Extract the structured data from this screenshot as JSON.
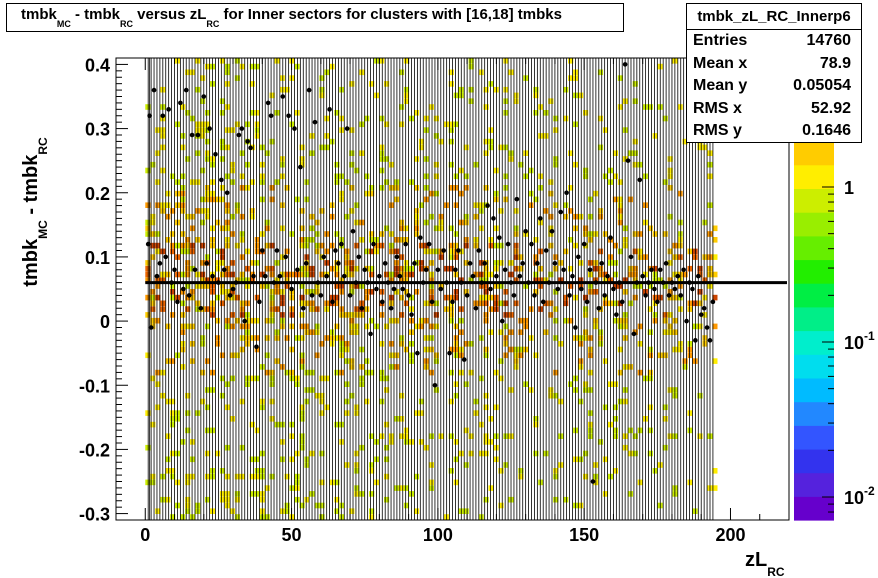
{
  "title": {
    "parts": [
      {
        "t": "tmbk",
        "sub": "MC"
      },
      {
        "t": " - tmbk",
        "sub": "RC"
      },
      {
        "t": " versus zL",
        "sub": "RC"
      },
      {
        "t": " for Inner sectors for clusters with [16,18] tmbks",
        "sub": ""
      }
    ]
  },
  "stats": {
    "name": "tmbk_zL_RC_Innerp6",
    "rows": [
      {
        "key": "Entries",
        "value": "14760"
      },
      {
        "key": "Mean x",
        "value": "78.9"
      },
      {
        "key": "Mean y",
        "value": "0.05054"
      },
      {
        "key": "RMS x",
        "value": "52.92"
      },
      {
        "key": "RMS y",
        "value": "0.1646"
      }
    ]
  },
  "chart_data": {
    "type": "heatmap",
    "title": "tmbk_MC - tmbk_RC versus zL_RC for Inner sectors for clusters with [16,18] tmbks",
    "xlabel": "zL_RC",
    "ylabel": "tmbk_MC - tmbk_RC",
    "xlim": [
      -10,
      220
    ],
    "ylim": [
      -0.31,
      0.41
    ],
    "x_ticks": [
      0,
      50,
      100,
      150,
      200
    ],
    "x_tick_labels": [
      "0",
      "50",
      "100",
      "150",
      "200"
    ],
    "y_ticks": [
      -0.3,
      -0.2,
      -0.1,
      0,
      0.1,
      0.2,
      0.3,
      0.4
    ],
    "y_tick_labels": [
      "-0.3",
      "-0.2",
      "-0.1",
      "0",
      "0.1",
      "0.2",
      "0.3",
      "0.4"
    ],
    "x_data_range": [
      0,
      195
    ],
    "mean_line_y": 0.06,
    "colorbar": {
      "scale": "log",
      "labels": [
        {
          "value": 1,
          "base": "1",
          "exp": ""
        },
        {
          "value": 0.1,
          "base": "10",
          "exp": "-1"
        },
        {
          "value": 0.01,
          "base": "10",
          "exp": "-2"
        }
      ],
      "colors": [
        "#6600cc",
        "#5522dd",
        "#3333ee",
        "#3355ff",
        "#2288ff",
        "#00bbff",
        "#00ddee",
        "#00eecc",
        "#00ee88",
        "#00ee44",
        "#22ee00",
        "#66ee00",
        "#99ee00",
        "#ccee00",
        "#ffee00",
        "#ffcc00"
      ]
    },
    "profile_points": [
      {
        "x": 1,
        "y": 0.12
      },
      {
        "x": 1.5,
        "y": 0.32
      },
      {
        "x": 2,
        "y": -0.01
      },
      {
        "x": 3,
        "y": 0.36
      },
      {
        "x": 4,
        "y": 0.07
      },
      {
        "x": 5,
        "y": 0.09
      },
      {
        "x": 6,
        "y": 0.32
      },
      {
        "x": 7,
        "y": 0.1
      },
      {
        "x": 8,
        "y": 0.33
      },
      {
        "x": 9,
        "y": 0.06
      },
      {
        "x": 10,
        "y": 0.08
      },
      {
        "x": 11,
        "y": 0.03
      },
      {
        "x": 12,
        "y": 0.34
      },
      {
        "x": 13,
        "y": 0.05
      },
      {
        "x": 14,
        "y": 0.36
      },
      {
        "x": 15,
        "y": 0.04
      },
      {
        "x": 16,
        "y": 0.29
      },
      {
        "x": 17,
        "y": 0.08
      },
      {
        "x": 18,
        "y": 0.29
      },
      {
        "x": 19,
        "y": 0.02
      },
      {
        "x": 20,
        "y": 0.35
      },
      {
        "x": 21,
        "y": 0.09
      },
      {
        "x": 22,
        "y": 0.3
      },
      {
        "x": 23,
        "y": 0.07
      },
      {
        "x": 24,
        "y": 0.26
      },
      {
        "x": 25,
        "y": 0.06
      },
      {
        "x": 26,
        "y": 0.22
      },
      {
        "x": 27,
        "y": 0.08
      },
      {
        "x": 28,
        "y": 0.2
      },
      {
        "x": 29,
        "y": 0.04
      },
      {
        "x": 30,
        "y": 0.05
      },
      {
        "x": 31,
        "y": 0.06
      },
      {
        "x": 32,
        "y": 0.29
      },
      {
        "x": 33,
        "y": 0.3
      },
      {
        "x": 34,
        "y": 0.0
      },
      {
        "x": 35,
        "y": 0.28
      },
      {
        "x": 36,
        "y": 0.27
      },
      {
        "x": 37,
        "y": 0.07
      },
      {
        "x": 38,
        "y": -0.04
      },
      {
        "x": 39,
        "y": 0.03
      },
      {
        "x": 40,
        "y": 0.11
      },
      {
        "x": 41,
        "y": 0.07
      },
      {
        "x": 42,
        "y": 0.34
      },
      {
        "x": 43,
        "y": 0.32
      },
      {
        "x": 44,
        "y": 0.06
      },
      {
        "x": 45,
        "y": 0.11
      },
      {
        "x": 46,
        "y": 0.07
      },
      {
        "x": 47,
        "y": 0.35
      },
      {
        "x": 48,
        "y": 0.1
      },
      {
        "x": 49,
        "y": 0.32
      },
      {
        "x": 50,
        "y": 0.05
      },
      {
        "x": 51,
        "y": 0.3
      },
      {
        "x": 52,
        "y": 0.08
      },
      {
        "x": 53,
        "y": 0.24
      },
      {
        "x": 54,
        "y": 0.02
      },
      {
        "x": 55,
        "y": 0.09
      },
      {
        "x": 56,
        "y": 0.36
      },
      {
        "x": 57,
        "y": 0.04
      },
      {
        "x": 58,
        "y": 0.31
      },
      {
        "x": 59,
        "y": 0.06
      },
      {
        "x": 60,
        "y": 0.04
      },
      {
        "x": 61,
        "y": 0.1
      },
      {
        "x": 62,
        "y": 0.07
      },
      {
        "x": 63,
        "y": 0.33
      },
      {
        "x": 64,
        "y": 0.03
      },
      {
        "x": 65,
        "y": 0.11
      },
      {
        "x": 66,
        "y": 0.09
      },
      {
        "x": 67,
        "y": 0.12
      },
      {
        "x": 68,
        "y": 0.07
      },
      {
        "x": 69,
        "y": 0.3
      },
      {
        "x": 70,
        "y": 0.04
      },
      {
        "x": 71,
        "y": 0.14
      },
      {
        "x": 72,
        "y": 0.06
      },
      {
        "x": 73,
        "y": 0.1
      },
      {
        "x": 74,
        "y": 0.02
      },
      {
        "x": 75,
        "y": 0.08
      },
      {
        "x": 76,
        "y": 0.06
      },
      {
        "x": 77,
        "y": -0.02
      },
      {
        "x": 78,
        "y": 0.12
      },
      {
        "x": 79,
        "y": 0.05
      },
      {
        "x": 80,
        "y": 0.07
      },
      {
        "x": 81,
        "y": 0.03
      },
      {
        "x": 82,
        "y": 0.09
      },
      {
        "x": 83,
        "y": 0.06
      },
      {
        "x": 84,
        "y": 0.02
      },
      {
        "x": 85,
        "y": 0.05
      },
      {
        "x": 86,
        "y": 0.1
      },
      {
        "x": 87,
        "y": 0.07
      },
      {
        "x": 88,
        "y": 0.05
      },
      {
        "x": 89,
        "y": 0.12
      },
      {
        "x": 90,
        "y": 0.04
      },
      {
        "x": 91,
        "y": 0.01
      },
      {
        "x": 92,
        "y": 0.09
      },
      {
        "x": 93,
        "y": -0.05
      },
      {
        "x": 94,
        "y": 0.13
      },
      {
        "x": 95,
        "y": 0.06
      },
      {
        "x": 96,
        "y": 0.08
      },
      {
        "x": 97,
        "y": 0.12
      },
      {
        "x": 98,
        "y": 0.03
      },
      {
        "x": 99,
        "y": -0.1
      },
      {
        "x": 100,
        "y": 0.08
      },
      {
        "x": 101,
        "y": 0.05
      },
      {
        "x": 102,
        "y": 0.11
      },
      {
        "x": 103,
        "y": 0.06
      },
      {
        "x": 104,
        "y": -0.05
      },
      {
        "x": 105,
        "y": 0.03
      },
      {
        "x": 106,
        "y": 0.08
      },
      {
        "x": 107,
        "y": 0.11
      },
      {
        "x": 108,
        "y": 0.06
      },
      {
        "x": 109,
        "y": -0.06
      },
      {
        "x": 110,
        "y": 0.04
      },
      {
        "x": 111,
        "y": 0.09
      },
      {
        "x": 112,
        "y": 0.07
      },
      {
        "x": 113,
        "y": 0.02
      },
      {
        "x": 114,
        "y": 0.11
      },
      {
        "x": 115,
        "y": 0.06
      },
      {
        "x": 116,
        "y": 0.09
      },
      {
        "x": 117,
        "y": 0.18
      },
      {
        "x": 118,
        "y": 0.05
      },
      {
        "x": 119,
        "y": 0.16
      },
      {
        "x": 120,
        "y": 0.07
      },
      {
        "x": 121,
        "y": 0.13
      },
      {
        "x": 122,
        "y": 0.0
      },
      {
        "x": 123,
        "y": 0.08
      },
      {
        "x": 124,
        "y": 0.12
      },
      {
        "x": 125,
        "y": 0.06
      },
      {
        "x": 126,
        "y": 0.04
      },
      {
        "x": 127,
        "y": 0.19
      },
      {
        "x": 128,
        "y": 0.07
      },
      {
        "x": 129,
        "y": 0.09
      },
      {
        "x": 130,
        "y": 0.14
      },
      {
        "x": 131,
        "y": 0.06
      },
      {
        "x": 132,
        "y": 0.12
      },
      {
        "x": 133,
        "y": 0.04
      },
      {
        "x": 134,
        "y": 0.09
      },
      {
        "x": 135,
        "y": 0.16
      },
      {
        "x": 136,
        "y": 0.03
      },
      {
        "x": 137,
        "y": 0.11
      },
      {
        "x": 138,
        "y": 0.06
      },
      {
        "x": 139,
        "y": 0.14
      },
      {
        "x": 140,
        "y": 0.09
      },
      {
        "x": 141,
        "y": 0.05
      },
      {
        "x": 142,
        "y": 0.17
      },
      {
        "x": 143,
        "y": 0.08
      },
      {
        "x": 144,
        "y": 0.2
      },
      {
        "x": 145,
        "y": 0.04
      },
      {
        "x": 146,
        "y": 0.07
      },
      {
        "x": 147,
        "y": -0.01
      },
      {
        "x": 148,
        "y": 0.1
      },
      {
        "x": 149,
        "y": 0.05
      },
      {
        "x": 150,
        "y": 0.12
      },
      {
        "x": 151,
        "y": 0.03
      },
      {
        "x": 152,
        "y": 0.08
      },
      {
        "x": 153,
        "y": -0.25
      },
      {
        "x": 154,
        "y": 0.06
      },
      {
        "x": 155,
        "y": 0.02
      },
      {
        "x": 156,
        "y": 0.09
      },
      {
        "x": 157,
        "y": 0.04
      },
      {
        "x": 158,
        "y": 0.07
      },
      {
        "x": 159,
        "y": 0.13
      },
      {
        "x": 160,
        "y": 0.05
      },
      {
        "x": 161,
        "y": 0.01
      },
      {
        "x": 162,
        "y": 0.06
      },
      {
        "x": 163,
        "y": 0.03
      },
      {
        "x": 164,
        "y": 0.4
      },
      {
        "x": 165,
        "y": 0.25
      },
      {
        "x": 166,
        "y": 0.1
      },
      {
        "x": 167,
        "y": -0.02
      },
      {
        "x": 168,
        "y": 0.06
      },
      {
        "x": 169,
        "y": 0.22
      },
      {
        "x": 170,
        "y": 0.07
      },
      {
        "x": 171,
        "y": 0.04
      },
      {
        "x": 172,
        "y": 0.06
      },
      {
        "x": 173,
        "y": 0.08
      },
      {
        "x": 174,
        "y": 0.05
      },
      {
        "x": 175,
        "y": 0.03
      },
      {
        "x": 176,
        "y": 0.08
      },
      {
        "x": 177,
        "y": 0.06
      },
      {
        "x": 178,
        "y": 0.09
      },
      {
        "x": 179,
        "y": 0.04
      },
      {
        "x": 180,
        "y": 0.06
      },
      {
        "x": 181,
        "y": 0.05
      },
      {
        "x": 182,
        "y": 0.07
      },
      {
        "x": 183,
        "y": 0.04
      },
      {
        "x": 184,
        "y": 0.08
      },
      {
        "x": 185,
        "y": 0.0
      },
      {
        "x": 186,
        "y": 0.06
      },
      {
        "x": 187,
        "y": 0.05
      },
      {
        "x": 188,
        "y": -0.03
      },
      {
        "x": 189,
        "y": 0.07
      },
      {
        "x": 190,
        "y": 0.01
      },
      {
        "x": 191,
        "y": 0.02
      },
      {
        "x": 192,
        "y": -0.01
      },
      {
        "x": 193,
        "y": -0.03
      },
      {
        "x": 194,
        "y": 0.03
      }
    ]
  }
}
